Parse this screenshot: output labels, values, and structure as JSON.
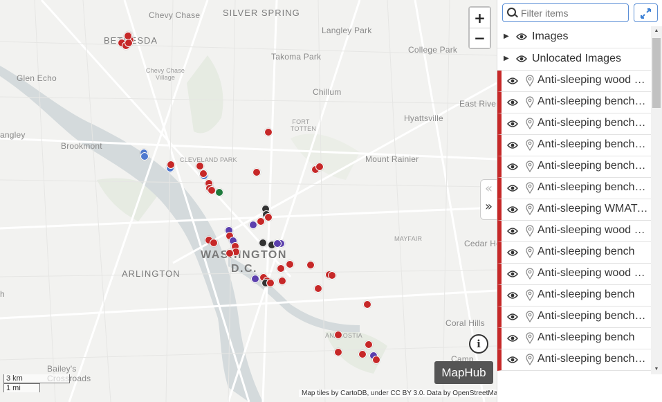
{
  "map": {
    "places": [
      {
        "id": "chevy-chase",
        "text": "Chevy Chase",
        "cls": ""
      },
      {
        "id": "silver-spring",
        "text": "SILVER SPRING",
        "cls": "big"
      },
      {
        "id": "langley-park",
        "text": "Langley Park",
        "cls": ""
      },
      {
        "id": "bethesda",
        "text": "BETHESDA",
        "cls": "big"
      },
      {
        "id": "takoma-park",
        "text": "Takoma Park",
        "cls": ""
      },
      {
        "id": "college-park",
        "text": "College Park",
        "cls": ""
      },
      {
        "id": "chevy-chase-village",
        "text": "Chevy Chase Village",
        "cls": "small"
      },
      {
        "id": "glen-echo",
        "text": "Glen Echo",
        "cls": ""
      },
      {
        "id": "chillum",
        "text": "Chillum",
        "cls": ""
      },
      {
        "id": "east-river",
        "text": "East River",
        "cls": ""
      },
      {
        "id": "fort-totten",
        "text": "FORT TOTTEN",
        "cls": "small"
      },
      {
        "id": "hyattsville",
        "text": "Hyattsville",
        "cls": ""
      },
      {
        "id": "angley",
        "text": "angley",
        "cls": ""
      },
      {
        "id": "brookmont",
        "text": "Brookmont",
        "cls": ""
      },
      {
        "id": "cleveland-park",
        "text": "CLEVELAND PARK",
        "cls": "small"
      },
      {
        "id": "mount-rainier",
        "text": "Mount Rainier",
        "cls": ""
      },
      {
        "id": "mayfair",
        "text": "MAYFAIR",
        "cls": "small"
      },
      {
        "id": "cedar-heights",
        "text": "Cedar Heig",
        "cls": ""
      },
      {
        "id": "washington",
        "text": "WASHINGTON",
        "cls": "huge"
      },
      {
        "id": "dc",
        "text": "D.C.",
        "cls": "huge"
      },
      {
        "id": "arlington",
        "text": "ARLINGTON",
        "cls": "big"
      },
      {
        "id": "h",
        "text": "h",
        "cls": ""
      },
      {
        "id": "coral-hills",
        "text": "Coral Hills",
        "cls": ""
      },
      {
        "id": "anacostia",
        "text": "ANACOSTIA",
        "cls": "small"
      },
      {
        "id": "baileys",
        "text": "Bailey's Crossroads",
        "cls": ""
      },
      {
        "id": "camp",
        "text": "Camp",
        "cls": ""
      }
    ],
    "markers": [
      {
        "color": "#c62828"
      },
      {
        "color": "#c62828"
      },
      {
        "color": "#c62828"
      },
      {
        "color": "#c62828"
      },
      {
        "color": "#c62828"
      },
      {
        "color": "#c62828"
      },
      {
        "color": "#4f79cf"
      },
      {
        "color": "#4f79cf"
      },
      {
        "color": "#4f79cf"
      },
      {
        "color": "#c62828"
      },
      {
        "color": "#c62828"
      },
      {
        "color": "#4f79cf"
      },
      {
        "color": "#c62828"
      },
      {
        "color": "#c62828"
      },
      {
        "color": "#c62828"
      },
      {
        "color": "#c62828"
      },
      {
        "color": "#1e7a3c"
      },
      {
        "color": "#c62828"
      },
      {
        "color": "#c62828"
      },
      {
        "color": "#c62828"
      },
      {
        "color": "#c62828"
      },
      {
        "color": "#333333"
      },
      {
        "color": "#333333"
      },
      {
        "color": "#c62828"
      },
      {
        "color": "#c62828"
      },
      {
        "color": "#5b3fad"
      },
      {
        "color": "#c62828"
      },
      {
        "color": "#5b3fad"
      },
      {
        "color": "#c62828"
      },
      {
        "color": "#c62828"
      },
      {
        "color": "#5b3fad"
      },
      {
        "color": "#c62828"
      },
      {
        "color": "#c62828"
      },
      {
        "color": "#c62828"
      },
      {
        "color": "#333333"
      },
      {
        "color": "#333333"
      },
      {
        "color": "#5b3fad"
      },
      {
        "color": "#5b3fad"
      },
      {
        "color": "#c62828"
      },
      {
        "color": "#c62828"
      },
      {
        "color": "#c62828"
      },
      {
        "color": "#c62828"
      },
      {
        "color": "#c62828"
      },
      {
        "color": "#5b3fad"
      },
      {
        "color": "#c62828"
      },
      {
        "color": "#c62828"
      },
      {
        "color": "#333333"
      },
      {
        "color": "#c62828"
      },
      {
        "color": "#c62828"
      },
      {
        "color": "#c62828"
      },
      {
        "color": "#c62828"
      },
      {
        "color": "#c62828"
      },
      {
        "color": "#c62828"
      },
      {
        "color": "#c62828"
      },
      {
        "color": "#c62828"
      },
      {
        "color": "#5b3fad"
      },
      {
        "color": "#c62828"
      }
    ],
    "zoom_in": "+",
    "zoom_out": "−",
    "info": "i",
    "brand": "MapHub",
    "scale_km": "3 km",
    "scale_mi": "1 mi",
    "attribution": "Map tiles by CartoDB, under CC BY 3.0. Data by OpenStreetMap, under ODbL.",
    "panel_toggle": {
      "collapse": "«",
      "expand": "»"
    }
  },
  "sidebar": {
    "search_placeholder": "Filter items",
    "groups": [
      {
        "label": "Images"
      },
      {
        "label": "Unlocated Images"
      }
    ],
    "item_color": "#c62828",
    "items": [
      {
        "label": "Anti-sleeping wood bench"
      },
      {
        "label": "Anti-sleeping bench with armrests"
      },
      {
        "label": "Anti-sleeping bench with armrests"
      },
      {
        "label": "Anti-sleeping bench with armrests"
      },
      {
        "label": "Anti-sleeping bench with armrests"
      },
      {
        "label": "Anti-sleeping bench with armrests"
      },
      {
        "label": "Anti-sleeping WMATA bench"
      },
      {
        "label": "Anti-sleeping wood bench"
      },
      {
        "label": "Anti-sleeping bench"
      },
      {
        "label": "Anti-sleeping wood bench"
      },
      {
        "label": "Anti-sleeping bench"
      },
      {
        "label": "Anti-sleeping bench with armrests"
      },
      {
        "label": "Anti-sleeping bench"
      },
      {
        "label": "Anti-sleeping bench with armrests"
      }
    ]
  }
}
